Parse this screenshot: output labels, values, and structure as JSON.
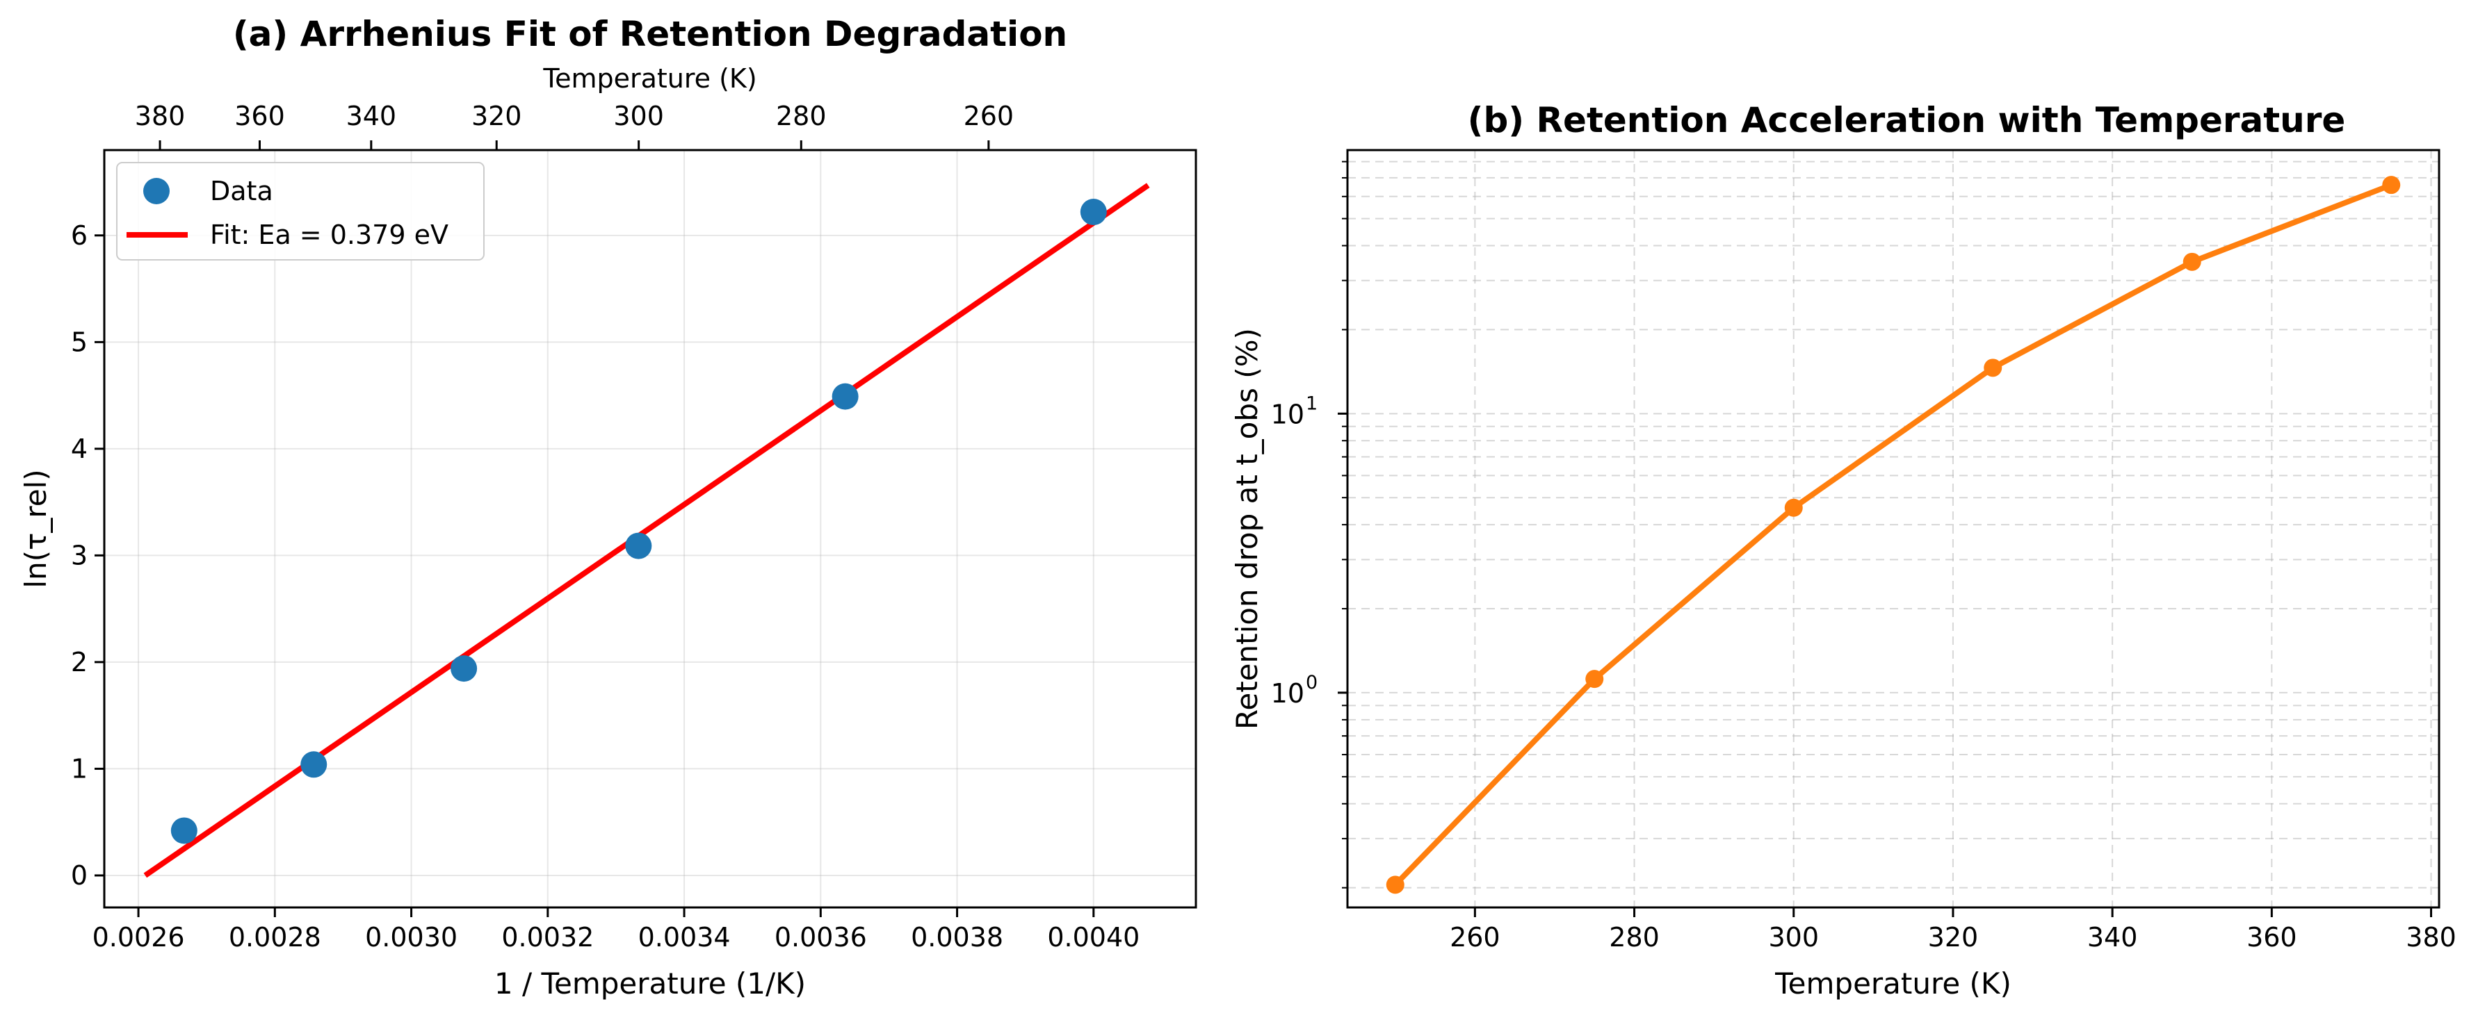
{
  "chart_data": [
    {
      "type": "scatter",
      "title": "(a) Arrhenius Fit of Retention Degradation",
      "xlabel": "1 / Temperature (1/K)",
      "ylabel": "ln(τ_rel)",
      "top_xlabel": "Temperature (K)",
      "xlim": [
        0.00255,
        0.00415
      ],
      "ylim": [
        -0.3,
        6.8
      ],
      "x_ticks": [
        0.0026,
        0.0028,
        0.003,
        0.0032,
        0.0034,
        0.0036,
        0.0038,
        0.004
      ],
      "x_tick_labels": [
        "0.0026",
        "0.0028",
        "0.0030",
        "0.0032",
        "0.0034",
        "0.0036",
        "0.0038",
        "0.0040"
      ],
      "y_ticks": [
        0,
        1,
        2,
        3,
        4,
        5,
        6
      ],
      "y_tick_labels": [
        "0",
        "1",
        "2",
        "3",
        "4",
        "5",
        "6"
      ],
      "top_ticks_K": [
        380,
        360,
        340,
        320,
        300,
        280,
        260
      ],
      "top_tick_labels": [
        "380",
        "360",
        "340",
        "320",
        "300",
        "280",
        "260"
      ],
      "grid": true,
      "legend_position": "top-left",
      "series": [
        {
          "name": "Data",
          "kind": "points",
          "color": "#1f77b4",
          "x": [
            0.002667,
            0.002857,
            0.003077,
            0.003333,
            0.003636,
            0.004
          ],
          "y": [
            0.42,
            1.04,
            1.94,
            3.09,
            4.49,
            6.22
          ]
        },
        {
          "name": "Fit: Ea = 0.379 eV",
          "kind": "line",
          "color": "#ff0000",
          "x": [
            0.00261,
            0.00408
          ],
          "y": [
            0.0,
            6.47
          ]
        }
      ]
    },
    {
      "type": "line",
      "title": "(b) Retention Acceleration with Temperature",
      "xlabel": "Temperature (K)",
      "ylabel": "Retention drop at t_obs (%)",
      "y_scale": "log",
      "xlim": [
        244,
        381
      ],
      "ylim": [
        0.17,
        88
      ],
      "x_ticks": [
        260,
        280,
        300,
        320,
        340,
        360,
        380
      ],
      "x_tick_labels": [
        "260",
        "280",
        "300",
        "320",
        "340",
        "360",
        "380"
      ],
      "y_major_ticks": [
        1,
        10
      ],
      "y_tick_labels": [
        "10",
        "10"
      ],
      "y_tick_exponents": [
        "0",
        "1"
      ],
      "grid": true,
      "series": [
        {
          "color": "#ff7f0e",
          "x": [
            250,
            275,
            300,
            325,
            350,
            375
          ],
          "y": [
            0.205,
            1.12,
            4.6,
            14.6,
            35.0,
            66.0
          ]
        }
      ]
    }
  ]
}
